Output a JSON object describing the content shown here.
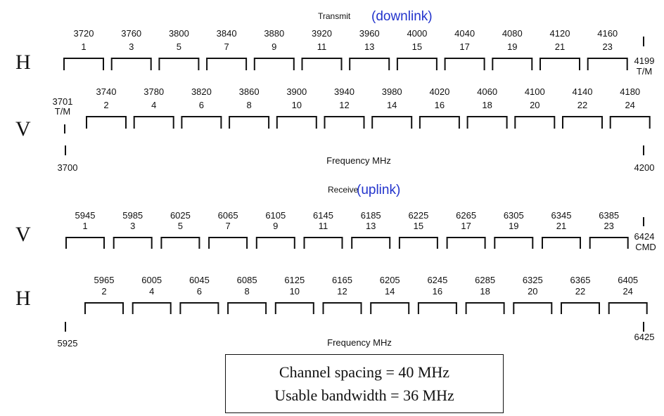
{
  "downlink": {
    "title_prefix": "Transmit",
    "title_suffix": "(downlink)",
    "h_label": "H",
    "v_label": "V",
    "h_channels": [
      {
        "freq": "3720",
        "ch": "1"
      },
      {
        "freq": "3760",
        "ch": "3"
      },
      {
        "freq": "3800",
        "ch": "5"
      },
      {
        "freq": "3840",
        "ch": "7"
      },
      {
        "freq": "3880",
        "ch": "9"
      },
      {
        "freq": "3920",
        "ch": "11"
      },
      {
        "freq": "3960",
        "ch": "13"
      },
      {
        "freq": "4000",
        "ch": "15"
      },
      {
        "freq": "4040",
        "ch": "17"
      },
      {
        "freq": "4080",
        "ch": "19"
      },
      {
        "freq": "4120",
        "ch": "21"
      },
      {
        "freq": "4160",
        "ch": "23"
      }
    ],
    "v_channels": [
      {
        "freq": "3740",
        "ch": "2"
      },
      {
        "freq": "3780",
        "ch": "4"
      },
      {
        "freq": "3820",
        "ch": "6"
      },
      {
        "freq": "3860",
        "ch": "8"
      },
      {
        "freq": "3900",
        "ch": "10"
      },
      {
        "freq": "3940",
        "ch": "12"
      },
      {
        "freq": "3980",
        "ch": "14"
      },
      {
        "freq": "4020",
        "ch": "16"
      },
      {
        "freq": "4060",
        "ch": "18"
      },
      {
        "freq": "4100",
        "ch": "20"
      },
      {
        "freq": "4140",
        "ch": "22"
      },
      {
        "freq": "4180",
        "ch": "24"
      }
    ],
    "right_marker": {
      "freq": "4199",
      "label": "T/M"
    },
    "left_marker": {
      "freq": "3701",
      "label": "T/M"
    },
    "axis_start": "3700",
    "axis_end": "4200",
    "axis_label": "Frequency MHz"
  },
  "uplink": {
    "title_prefix": "Receive",
    "title_suffix": "(uplink)",
    "v_label": "V",
    "h_label": "H",
    "v_channels": [
      {
        "freq": "5945",
        "ch": "1"
      },
      {
        "freq": "5985",
        "ch": "3"
      },
      {
        "freq": "6025",
        "ch": "5"
      },
      {
        "freq": "6065",
        "ch": "7"
      },
      {
        "freq": "6105",
        "ch": "9"
      },
      {
        "freq": "6145",
        "ch": "11"
      },
      {
        "freq": "6185",
        "ch": "13"
      },
      {
        "freq": "6225",
        "ch": "15"
      },
      {
        "freq": "6265",
        "ch": "17"
      },
      {
        "freq": "6305",
        "ch": "19"
      },
      {
        "freq": "6345",
        "ch": "21"
      },
      {
        "freq": "6385",
        "ch": "23"
      }
    ],
    "h_channels": [
      {
        "freq": "5965",
        "ch": "2"
      },
      {
        "freq": "6005",
        "ch": "4"
      },
      {
        "freq": "6045",
        "ch": "6"
      },
      {
        "freq": "6085",
        "ch": "8"
      },
      {
        "freq": "6125",
        "ch": "10"
      },
      {
        "freq": "6165",
        "ch": "12"
      },
      {
        "freq": "6205",
        "ch": "14"
      },
      {
        "freq": "6245",
        "ch": "16"
      },
      {
        "freq": "6285",
        "ch": "18"
      },
      {
        "freq": "6325",
        "ch": "20"
      },
      {
        "freq": "6365",
        "ch": "22"
      },
      {
        "freq": "6405",
        "ch": "24"
      }
    ],
    "right_marker": {
      "freq": "6424",
      "label": "CMD"
    },
    "axis_start": "5925",
    "axis_end": "6425",
    "axis_label": "Frequency MHz"
  },
  "info": {
    "line1": "Channel spacing = 40 MHz",
    "line2": "Usable bandwidth = 36 MHz"
  }
}
